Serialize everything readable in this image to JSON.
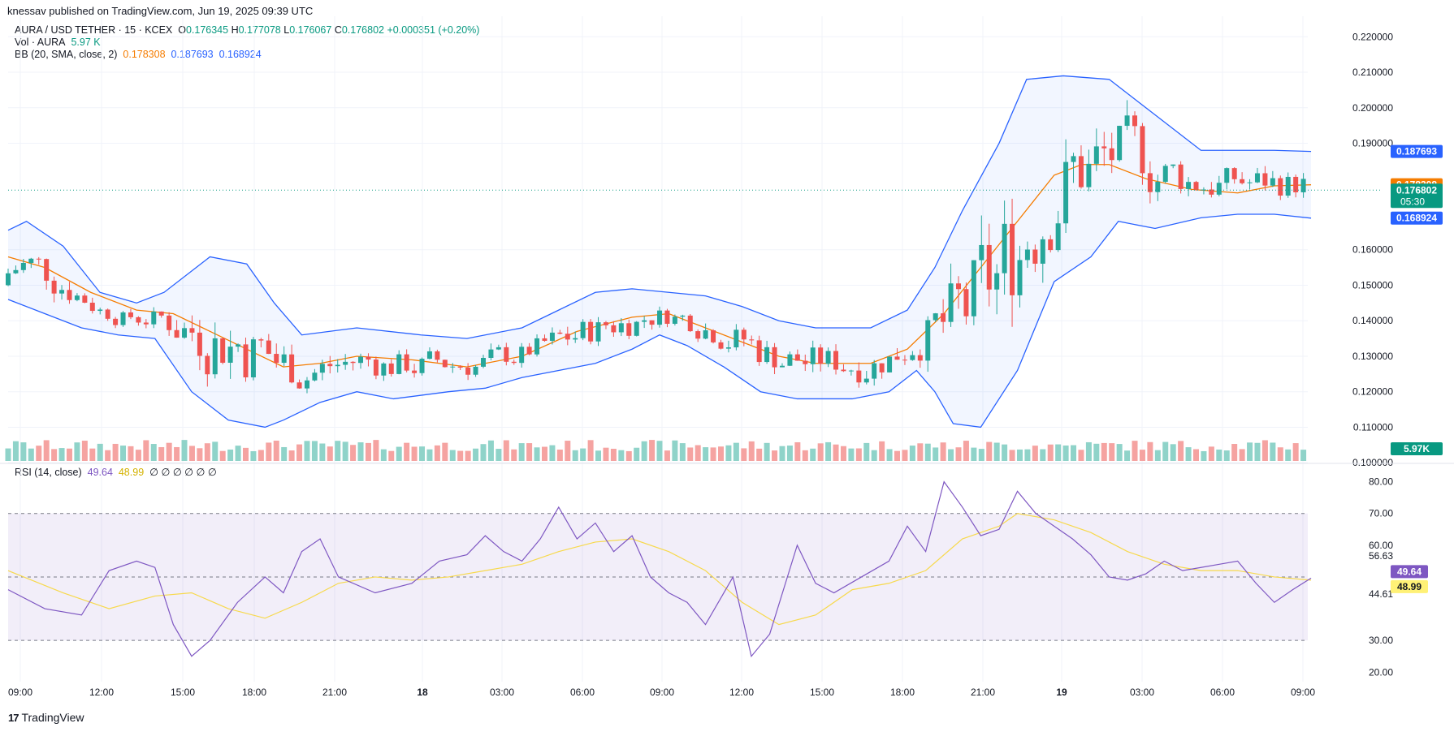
{
  "header": {
    "published": "knessav published on TradingView.com, Jun 19, 2025 09:39 UTC"
  },
  "legend": {
    "symbol": "AURA / USD TETHER · 15 · KCEX",
    "o_label": "O",
    "o": "0.176345",
    "h_label": "H",
    "h": "0.177078",
    "l_label": "L",
    "l": "0.176067",
    "c_label": "C",
    "c": "0.176802",
    "change": "+0.000351 (+0.20%)",
    "vol_label": "Vol · AURA",
    "vol": "5.97 K",
    "bb_label": "BB (20, SMA, close, 2)",
    "bb_basis": "0.178308",
    "bb_upper": "0.187693",
    "bb_lower": "0.168924",
    "rsi_label": "RSI (14, close)",
    "rsi": "49.64",
    "rsi_ma": "48.99",
    "rsi_extra": "∅ ∅ ∅ ∅ ∅ ∅"
  },
  "brand": {
    "name": "TradingView"
  },
  "colors": {
    "up": "#26a69a",
    "down": "#ef5350",
    "basis": "#f57c00",
    "band": "#2962ff",
    "rsi": "#7e57c2",
    "rsi_ma": "#f7d94c",
    "vol_up": "#8fd3c9",
    "vol_down": "#f5a3a1"
  },
  "chart_data": {
    "type": "candlestick",
    "symbol": "AURA / USD TETHER",
    "interval": "15",
    "exchange": "KCEX",
    "price_axis": {
      "ticks": [
        "0.220000",
        "0.210000",
        "0.200000",
        "0.190000",
        "0.160000",
        "0.150000",
        "0.140000",
        "0.130000",
        "0.120000",
        "0.110000",
        "0.100000"
      ],
      "range": [
        0.1005,
        0.2235
      ]
    },
    "x_axis_labels": [
      "09:00",
      "12:00",
      "15:00",
      "18:00",
      "21:00",
      "18",
      "03:00",
      "06:00",
      "09:00",
      "12:00",
      "15:00",
      "18:00",
      "21:00",
      "19",
      "03:00",
      "06:00",
      "09:00"
    ],
    "price_labels": [
      {
        "value": "0.187693",
        "price": 0.187693,
        "color": "#2962ff"
      },
      {
        "value": "0.178308",
        "price": 0.178308,
        "color": "#f57c00"
      },
      {
        "value": "0.176802",
        "price": 0.176802,
        "sub": "05:30",
        "color": "#089981"
      },
      {
        "value": "0.168924",
        "price": 0.168924,
        "color": "#2962ff"
      },
      {
        "value": "5.97K",
        "price": null,
        "color": "#089981"
      }
    ],
    "current_price": 0.176802,
    "rsi_axis": {
      "ticks": [
        "80.00",
        "70.00",
        "60.00",
        "56.63",
        "44.61",
        "30.00",
        "20.00"
      ],
      "range": [
        17,
        84
      ],
      "overbought": 70,
      "middle": 50,
      "oversold": 30
    },
    "rsi_labels": [
      {
        "value": "49.64",
        "rsi": 49.64,
        "color": "#7e57c2",
        "text": "#ffffff"
      },
      {
        "value": "48.99",
        "rsi": 48.99,
        "color": "#fff176",
        "text": "#131722"
      }
    ],
    "series": [
      {
        "name": "Bollinger upper",
        "approx_points": [
          [
            0,
            0.1655
          ],
          [
            20,
            0.168
          ],
          [
            60,
            0.161
          ],
          [
            100,
            0.148
          ],
          [
            140,
            0.145
          ],
          [
            170,
            0.148
          ],
          [
            220,
            0.158
          ],
          [
            260,
            0.156
          ],
          [
            290,
            0.145
          ],
          [
            320,
            0.136
          ],
          [
            380,
            0.138
          ],
          [
            450,
            0.136
          ],
          [
            500,
            0.135
          ],
          [
            560,
            0.138
          ],
          [
            600,
            0.143
          ],
          [
            640,
            0.148
          ],
          [
            680,
            0.149
          ],
          [
            720,
            0.148
          ],
          [
            760,
            0.147
          ],
          [
            800,
            0.144
          ],
          [
            840,
            0.14
          ],
          [
            880,
            0.138
          ],
          [
            940,
            0.138
          ],
          [
            980,
            0.143
          ],
          [
            1010,
            0.155
          ],
          [
            1040,
            0.171
          ],
          [
            1080,
            0.19
          ],
          [
            1110,
            0.208
          ],
          [
            1150,
            0.209
          ],
          [
            1200,
            0.208
          ],
          [
            1250,
            0.198
          ],
          [
            1300,
            0.188
          ],
          [
            1340,
            0.188
          ],
          [
            1380,
            0.188
          ],
          [
            1420,
            0.1877
          ]
        ]
      },
      {
        "name": "Bollinger lower",
        "approx_points": [
          [
            0,
            0.146
          ],
          [
            40,
            0.142
          ],
          [
            80,
            0.138
          ],
          [
            120,
            0.136
          ],
          [
            160,
            0.135
          ],
          [
            200,
            0.12
          ],
          [
            240,
            0.112
          ],
          [
            280,
            0.11
          ],
          [
            300,
            0.112
          ],
          [
            340,
            0.117
          ],
          [
            380,
            0.12
          ],
          [
            420,
            0.118
          ],
          [
            480,
            0.12
          ],
          [
            520,
            0.121
          ],
          [
            560,
            0.124
          ],
          [
            600,
            0.126
          ],
          [
            640,
            0.128
          ],
          [
            680,
            0.132
          ],
          [
            710,
            0.136
          ],
          [
            740,
            0.133
          ],
          [
            780,
            0.127
          ],
          [
            820,
            0.12
          ],
          [
            860,
            0.118
          ],
          [
            920,
            0.118
          ],
          [
            960,
            0.12
          ],
          [
            990,
            0.126
          ],
          [
            1010,
            0.12
          ],
          [
            1030,
            0.111
          ],
          [
            1060,
            0.11
          ],
          [
            1100,
            0.126
          ],
          [
            1140,
            0.151
          ],
          [
            1180,
            0.158
          ],
          [
            1210,
            0.168
          ],
          [
            1250,
            0.166
          ],
          [
            1300,
            0.169
          ],
          [
            1340,
            0.17
          ],
          [
            1380,
            0.17
          ],
          [
            1420,
            0.1689
          ]
        ]
      },
      {
        "name": "Bollinger basis",
        "approx_points": [
          [
            0,
            0.158
          ],
          [
            40,
            0.155
          ],
          [
            90,
            0.148
          ],
          [
            140,
            0.143
          ],
          [
            180,
            0.142
          ],
          [
            220,
            0.137
          ],
          [
            260,
            0.132
          ],
          [
            300,
            0.127
          ],
          [
            340,
            0.128
          ],
          [
            380,
            0.13
          ],
          [
            440,
            0.129
          ],
          [
            500,
            0.127
          ],
          [
            560,
            0.13
          ],
          [
            620,
            0.137
          ],
          [
            680,
            0.141
          ],
          [
            720,
            0.142
          ],
          [
            760,
            0.138
          ],
          [
            800,
            0.134
          ],
          [
            840,
            0.13
          ],
          [
            880,
            0.128
          ],
          [
            940,
            0.128
          ],
          [
            980,
            0.132
          ],
          [
            1020,
            0.142
          ],
          [
            1060,
            0.155
          ],
          [
            1100,
            0.168
          ],
          [
            1140,
            0.181
          ],
          [
            1170,
            0.184
          ],
          [
            1200,
            0.184
          ],
          [
            1240,
            0.18
          ],
          [
            1290,
            0.177
          ],
          [
            1340,
            0.176
          ],
          [
            1380,
            0.178
          ],
          [
            1420,
            0.1783
          ]
        ]
      },
      {
        "name": "RSI",
        "approx_points": [
          [
            0,
            46
          ],
          [
            40,
            40
          ],
          [
            80,
            38
          ],
          [
            110,
            52
          ],
          [
            140,
            55
          ],
          [
            160,
            53
          ],
          [
            180,
            35
          ],
          [
            200,
            25
          ],
          [
            220,
            30
          ],
          [
            250,
            42
          ],
          [
            280,
            50
          ],
          [
            300,
            45
          ],
          [
            320,
            58
          ],
          [
            340,
            62
          ],
          [
            360,
            50
          ],
          [
            400,
            45
          ],
          [
            440,
            48
          ],
          [
            470,
            55
          ],
          [
            500,
            57
          ],
          [
            520,
            63
          ],
          [
            540,
            58
          ],
          [
            560,
            55
          ],
          [
            580,
            62
          ],
          [
            600,
            72
          ],
          [
            620,
            62
          ],
          [
            640,
            67
          ],
          [
            660,
            58
          ],
          [
            680,
            63
          ],
          [
            700,
            50
          ],
          [
            720,
            45
          ],
          [
            740,
            42
          ],
          [
            760,
            35
          ],
          [
            790,
            50
          ],
          [
            810,
            25
          ],
          [
            830,
            32
          ],
          [
            860,
            60
          ],
          [
            880,
            48
          ],
          [
            900,
            45
          ],
          [
            930,
            50
          ],
          [
            960,
            55
          ],
          [
            980,
            66
          ],
          [
            1000,
            58
          ],
          [
            1020,
            80
          ],
          [
            1040,
            72
          ],
          [
            1060,
            63
          ],
          [
            1080,
            65
          ],
          [
            1100,
            77
          ],
          [
            1120,
            70
          ],
          [
            1140,
            66
          ],
          [
            1160,
            62
          ],
          [
            1180,
            57
          ],
          [
            1200,
            50
          ],
          [
            1220,
            49
          ],
          [
            1240,
            51
          ],
          [
            1260,
            55
          ],
          [
            1280,
            52
          ],
          [
            1300,
            53
          ],
          [
            1320,
            54
          ],
          [
            1340,
            55
          ],
          [
            1360,
            48
          ],
          [
            1380,
            42
          ],
          [
            1400,
            46
          ],
          [
            1420,
            49.64
          ]
        ]
      },
      {
        "name": "RSI-based MA",
        "approx_points": [
          [
            0,
            52
          ],
          [
            60,
            45
          ],
          [
            110,
            40
          ],
          [
            160,
            44
          ],
          [
            200,
            45
          ],
          [
            240,
            40
          ],
          [
            280,
            37
          ],
          [
            320,
            42
          ],
          [
            360,
            48
          ],
          [
            400,
            50
          ],
          [
            440,
            49
          ],
          [
            480,
            50
          ],
          [
            520,
            52
          ],
          [
            560,
            54
          ],
          [
            600,
            58
          ],
          [
            640,
            61
          ],
          [
            680,
            62
          ],
          [
            720,
            58
          ],
          [
            760,
            52
          ],
          [
            800,
            42
          ],
          [
            840,
            35
          ],
          [
            880,
            38
          ],
          [
            920,
            46
          ],
          [
            960,
            48
          ],
          [
            1000,
            52
          ],
          [
            1040,
            62
          ],
          [
            1080,
            66
          ],
          [
            1100,
            70
          ],
          [
            1140,
            68
          ],
          [
            1180,
            64
          ],
          [
            1220,
            58
          ],
          [
            1260,
            54
          ],
          [
            1300,
            52
          ],
          [
            1340,
            52
          ],
          [
            1380,
            50
          ],
          [
            1420,
            48.99
          ]
        ]
      }
    ]
  }
}
